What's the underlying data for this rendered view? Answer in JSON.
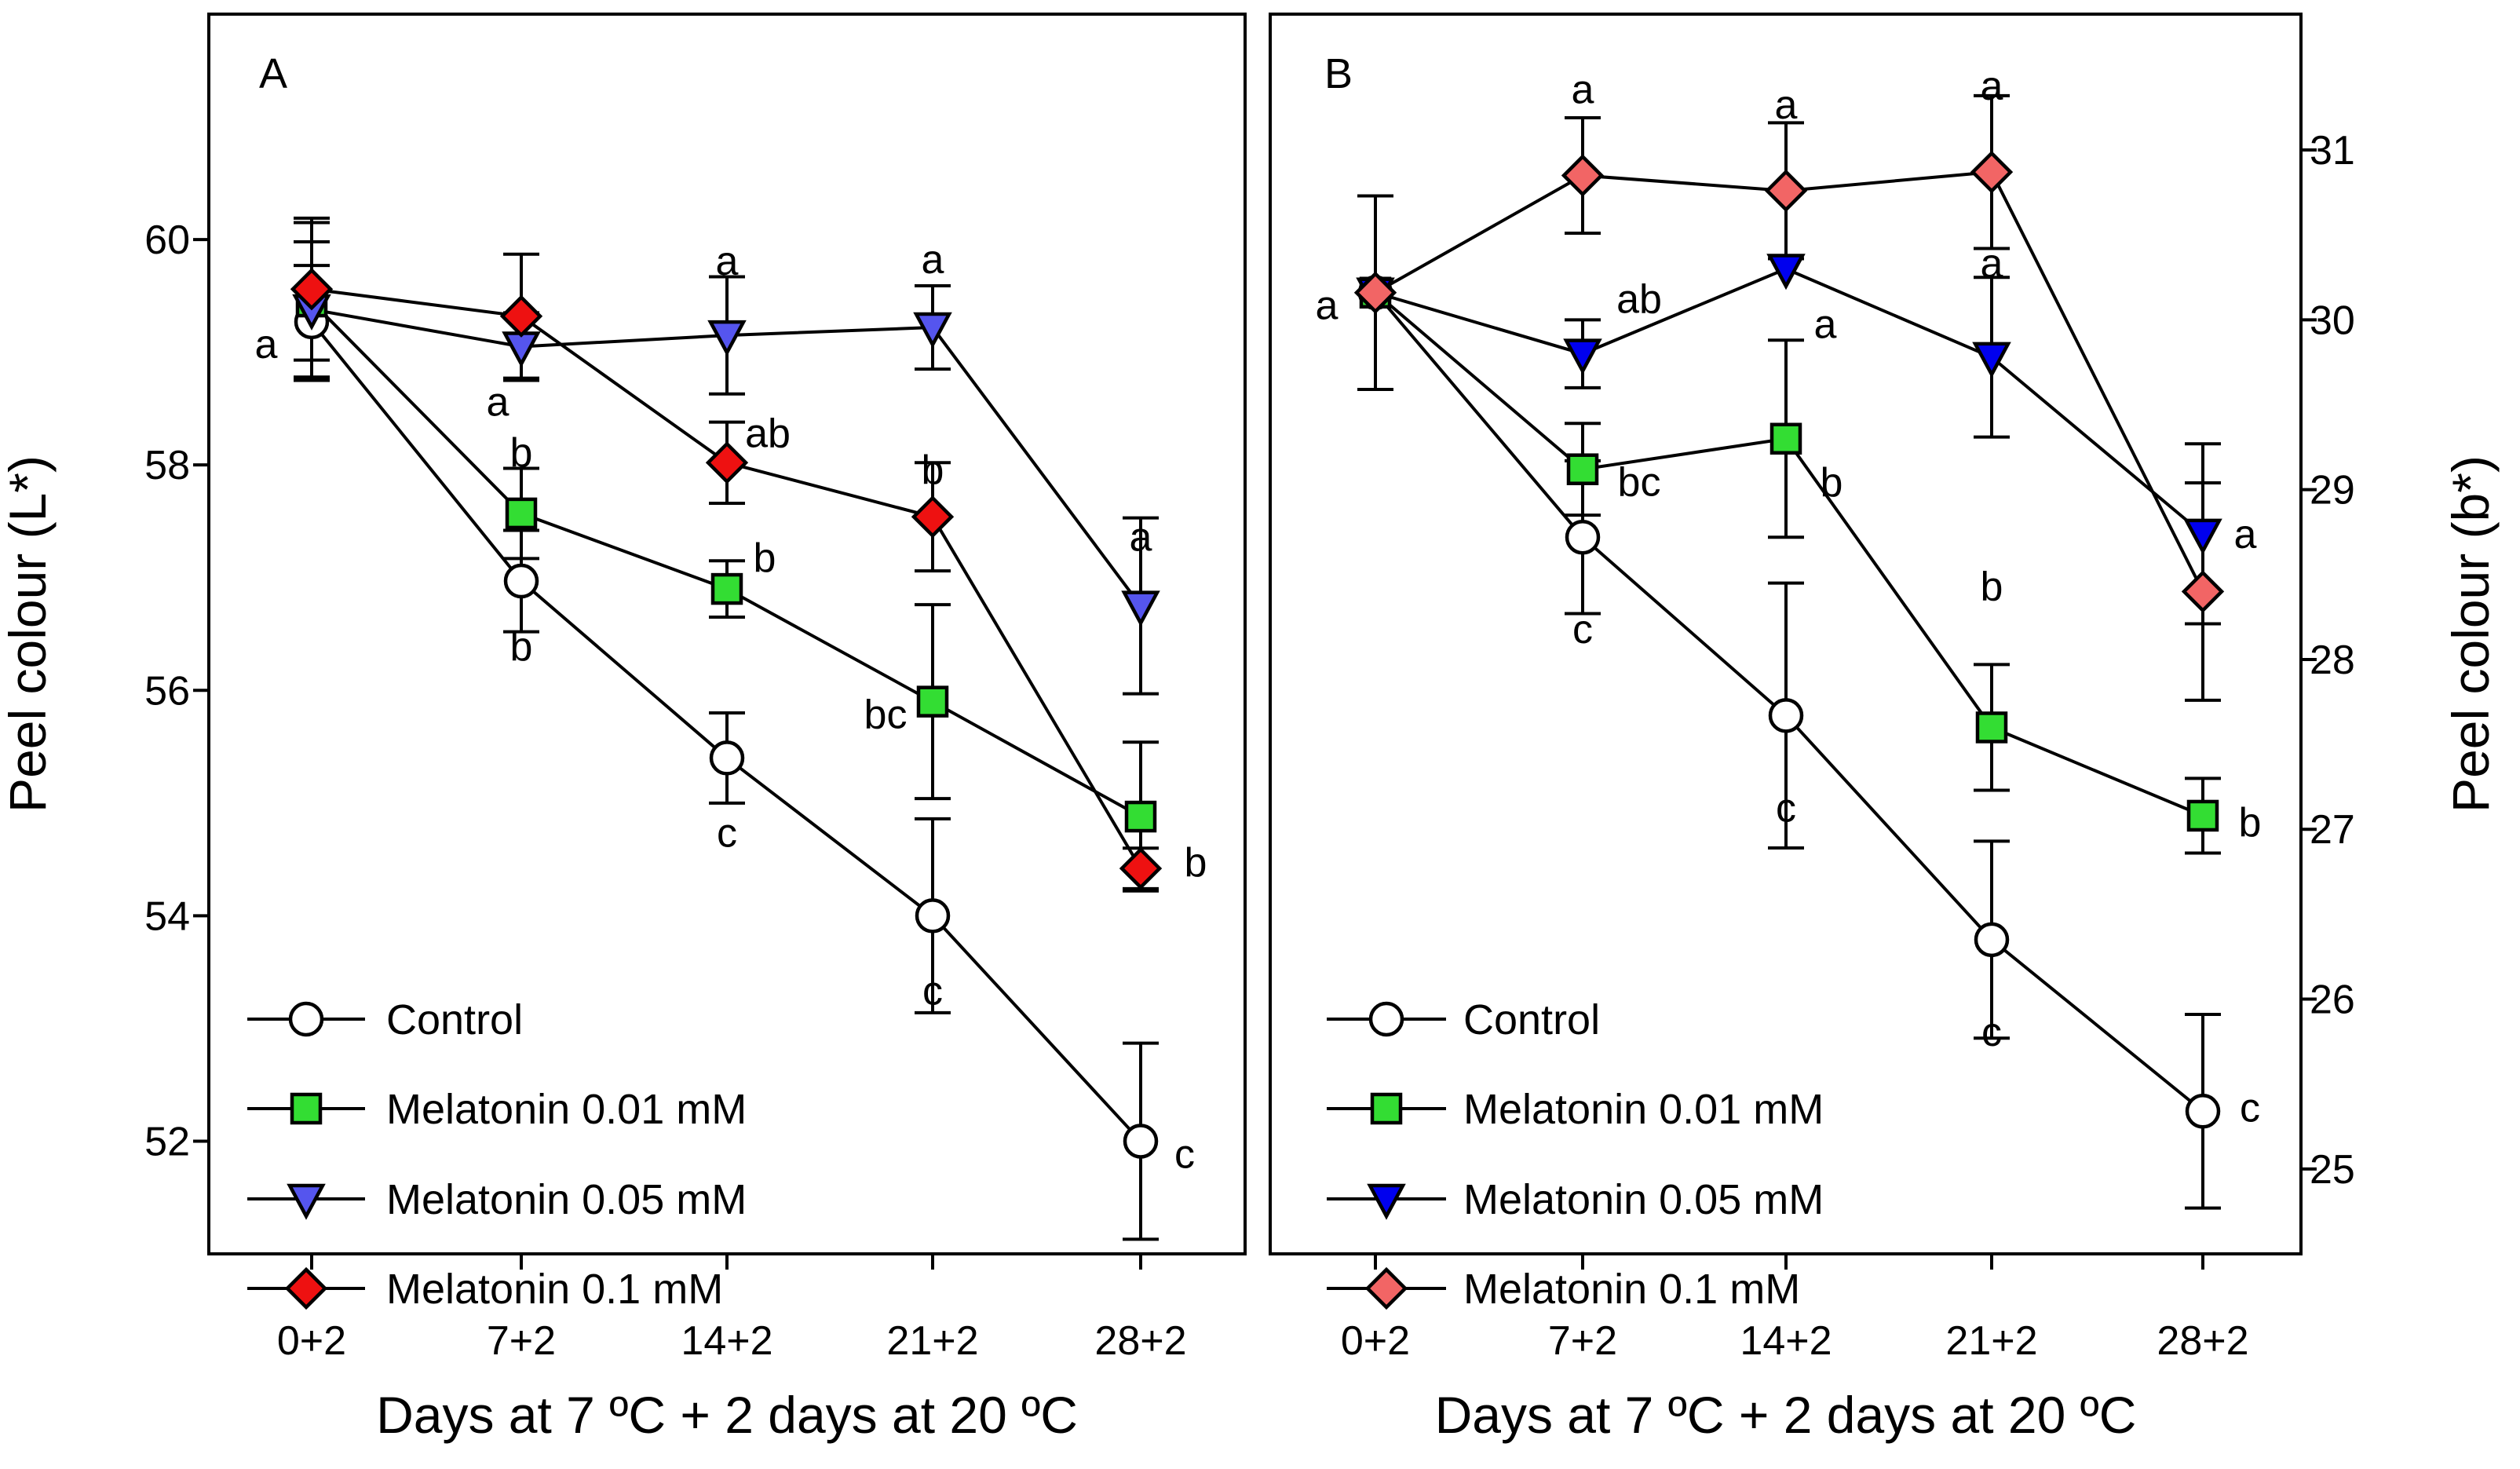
{
  "chart_data": [
    {
      "type": "line",
      "panel_label": "A",
      "title": "",
      "xlabel": "Days at 7 ºC + 2 days at 20 ºC",
      "ylabel": "Peel colour (L*)",
      "y_axis_side": "left",
      "categories": [
        "0+2",
        "7+2",
        "14+2",
        "21+2",
        "28+2"
      ],
      "ylim": [
        51.0,
        62.0
      ],
      "yticks": [
        52,
        54,
        56,
        58,
        60
      ],
      "ytick_labels": [
        "52",
        "54",
        "56",
        "58",
        "60"
      ],
      "grid": false,
      "legend_position": "bottom-left",
      "series": [
        {
          "name": "Control",
          "marker": "circle",
          "color": "#ffffff",
          "values": [
            59.27,
            56.97,
            55.4,
            54.0,
            52.0
          ],
          "errors": [
            0.5,
            0.45,
            0.4,
            0.86,
            0.87
          ],
          "letters": [
            "a",
            "b",
            "c",
            "c",
            "c"
          ]
        },
        {
          "name": "Melatonin 0.01 mM",
          "marker": "square",
          "color": "#33dd33",
          "values": [
            59.45,
            57.57,
            56.9,
            55.9,
            54.88
          ],
          "errors": [
            0.7,
            0.4,
            0.25,
            0.86,
            0.66
          ],
          "letters": [
            "",
            "b",
            "b",
            "bc",
            "b"
          ]
        },
        {
          "name": "Melatonin 0.05 mM",
          "marker": "triangle-down",
          "color": "#5555ee",
          "values": [
            59.38,
            59.05,
            59.15,
            59.22,
            56.75
          ],
          "errors": [
            0.6,
            0.3,
            0.52,
            0.37,
            0.78
          ],
          "letters": [
            "",
            "a",
            "a",
            "a",
            "a"
          ]
        },
        {
          "name": "Melatonin 0.1 mM",
          "marker": "diamond",
          "color": "#ee1111",
          "values": [
            59.56,
            59.32,
            58.02,
            57.54,
            54.42
          ],
          "errors": [
            0.63,
            0.55,
            0.36,
            0.48,
            0.18
          ],
          "letters": [
            "",
            "",
            "ab",
            "b",
            ""
          ]
        }
      ]
    },
    {
      "type": "line",
      "panel_label": "B",
      "title": "",
      "xlabel": "Days at 7 ºC + 2 days at 20 ºC",
      "ylabel": "Peel colour (b*)",
      "y_axis_side": "right",
      "categories": [
        "0+2",
        "7+2",
        "14+2",
        "21+2",
        "28+2"
      ],
      "ylim": [
        24.5,
        31.8
      ],
      "yticks": [
        25,
        26,
        27,
        28,
        29,
        30,
        31
      ],
      "ytick_labels": [
        "25",
        "26",
        "27",
        "28",
        "29",
        "30",
        "31"
      ],
      "grid": false,
      "legend_position": "bottom-left",
      "series": [
        {
          "name": "Control",
          "marker": "circle",
          "color": "#ffffff",
          "values": [
            30.16,
            28.72,
            27.67,
            26.35,
            25.34
          ],
          "errors": [
            0.57,
            0.45,
            0.78,
            0.58,
            0.57
          ],
          "letters": [
            "a",
            "c",
            "c",
            "c",
            "c"
          ]
        },
        {
          "name": "Melatonin 0.01 mM",
          "marker": "square",
          "color": "#33dd33",
          "values": [
            30.16,
            29.12,
            29.3,
            27.6,
            27.08
          ],
          "errors": [
            0.0,
            0.27,
            0.58,
            0.37,
            0.22
          ],
          "letters": [
            "",
            "bc",
            "b",
            "b",
            "b"
          ]
        },
        {
          "name": "Melatonin 0.05 mM",
          "marker": "triangle-down",
          "color": "#0000ee",
          "values": [
            30.16,
            29.8,
            30.3,
            29.78,
            28.74
          ],
          "errors": [
            0.0,
            0.2,
            0.0,
            0.47,
            0.53
          ],
          "letters": [
            "",
            "ab",
            "a",
            "a",
            "a"
          ]
        },
        {
          "name": "Melatonin 0.1 mM",
          "marker": "diamond",
          "color": "#f26565",
          "values": [
            30.16,
            30.85,
            30.76,
            30.87,
            28.4
          ],
          "errors": [
            0.0,
            0.34,
            0.4,
            0.45,
            0.64
          ],
          "letters": [
            "",
            "a",
            "a",
            "a",
            ""
          ]
        }
      ]
    }
  ]
}
